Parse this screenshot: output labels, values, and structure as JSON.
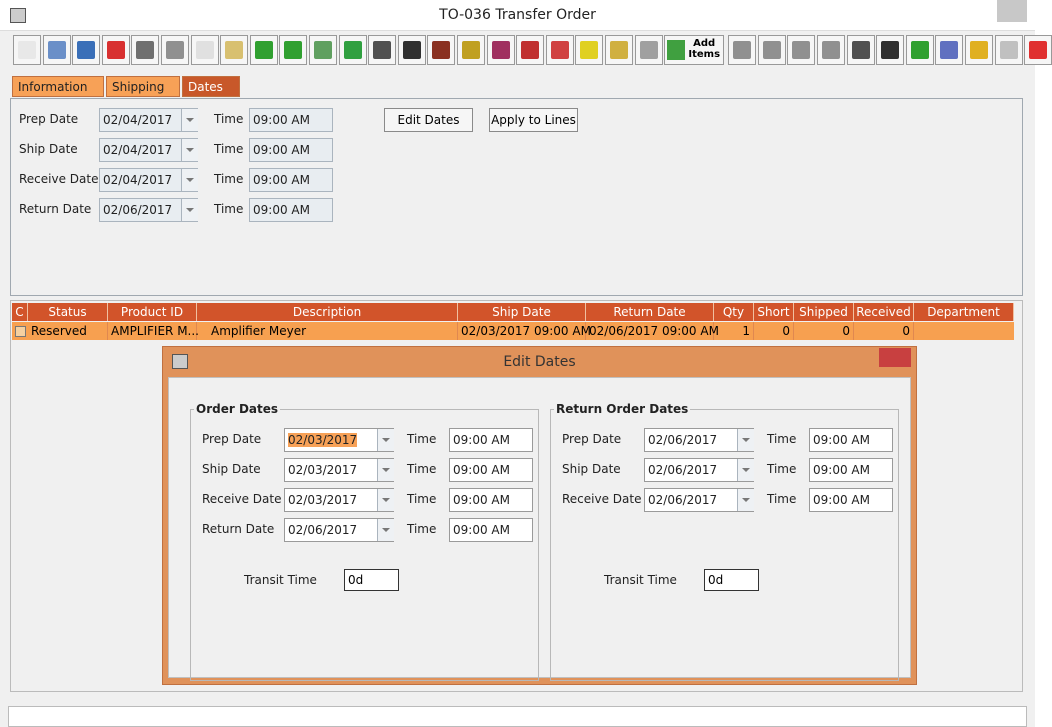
{
  "window": {
    "title": "TO-036 Transfer Order"
  },
  "toolbar": {
    "add_items": "Add Items"
  },
  "tabs": [
    "Information",
    "Shipping",
    "Dates"
  ],
  "dates_form": {
    "rows": [
      {
        "label": "Prep Date",
        "date": "02/04/2017",
        "time_label": "Time",
        "time": "09:00 AM"
      },
      {
        "label": "Ship Date",
        "date": "02/04/2017",
        "time_label": "Time",
        "time": "09:00 AM"
      },
      {
        "label": "Receive Date",
        "date": "02/04/2017",
        "time_label": "Time",
        "time": "09:00 AM"
      },
      {
        "label": "Return Date",
        "date": "02/06/2017",
        "time_label": "Time",
        "time": "09:00 AM"
      }
    ],
    "buttons": [
      "Edit Dates",
      "Apply to Lines"
    ]
  },
  "table": {
    "columns": [
      "C",
      "Status",
      "Product ID",
      "Description",
      "Ship Date",
      "Return Date",
      "Qty",
      "Short",
      "Shipped",
      "Received",
      "Department"
    ],
    "rows": [
      [
        "Reserved",
        "AMPLIFIER M...",
        "Amplifier Meyer",
        "02/03/2017 09:00 AM",
        "02/06/2017 09:00 AM",
        "1",
        "0",
        "0",
        "0"
      ]
    ]
  },
  "dialog": {
    "title": "Edit Dates",
    "groups": [
      {
        "title": "Order Dates",
        "rows": [
          {
            "label": "Prep Date",
            "date": "02/03/2017",
            "time_label": "Time",
            "time": "09:00 AM"
          },
          {
            "label": "Ship Date",
            "date": "02/03/2017",
            "time_label": "Time",
            "time": "09:00 AM"
          },
          {
            "label": "Receive Date",
            "date": "02/03/2017",
            "time_label": "Time",
            "time": "09:00 AM"
          },
          {
            "label": "Return Date",
            "date": "02/06/2017",
            "time_label": "Time",
            "time": "09:00 AM"
          }
        ],
        "transit_label": "Transit Time",
        "transit_value": "0d"
      },
      {
        "title": "Return Order Dates",
        "rows": [
          {
            "label": "Prep Date",
            "date": "02/06/2017",
            "time_label": "Time",
            "time": "09:00 AM"
          },
          {
            "label": "Ship Date",
            "date": "02/06/2017",
            "time_label": "Time",
            "time": "09:00 AM"
          },
          {
            "label": "Receive Date",
            "date": "02/06/2017",
            "time_label": "Time",
            "time": "09:00 AM"
          }
        ],
        "transit_label": "Transit Time",
        "transit_value": "0d"
      }
    ]
  }
}
